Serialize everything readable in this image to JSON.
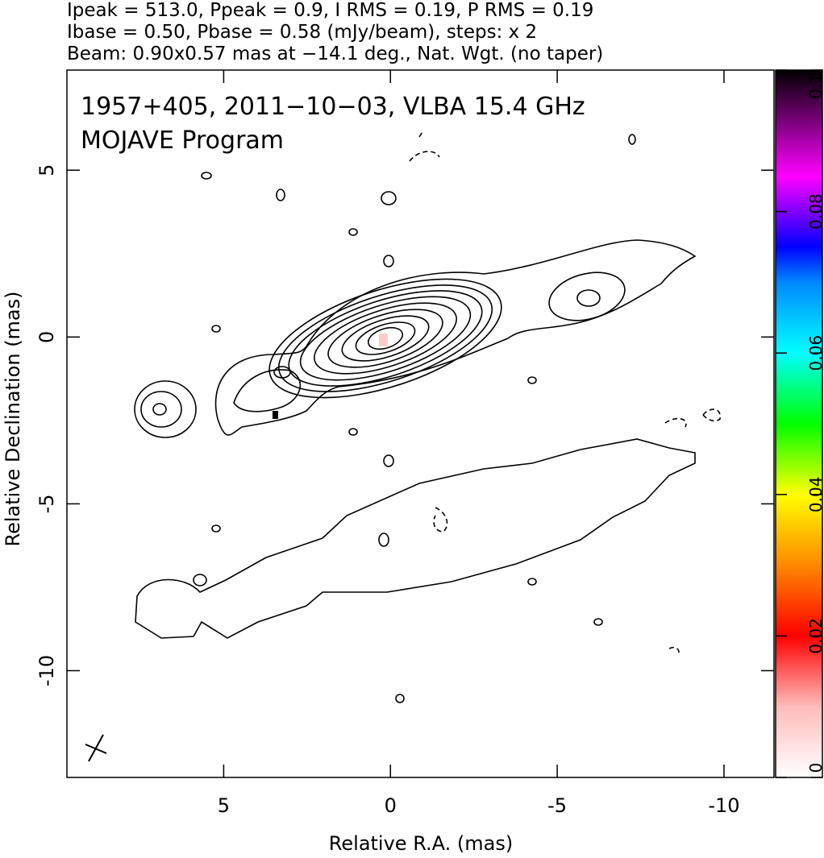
{
  "chart_data": {
    "type": "contour",
    "title_lines": [
      "Ipeak = 513.0, Ppeak = 0.9, I RMS = 0.19, P RMS = 0.19",
      "Ibase = 0.50, Pbase = 0.58 (mJy/beam), steps: x 2",
      "Beam: 0.90x0.57 mas at −14.1 deg., Nat. Wgt. (no taper)"
    ],
    "annotations": [
      "1957+405, 2011−10−03, VLBA 15.4 GHz",
      "MOJAVE Program"
    ],
    "xlabel": "Relative R.A. (mas)",
    "ylabel": "Relative Declination (mas)",
    "xlim": [
      9.7,
      -11.5
    ],
    "xticks": [
      5,
      0,
      -5,
      -10
    ],
    "ylim": [
      -13.2,
      8
    ],
    "yticks": [
      5,
      0,
      -5,
      -10
    ],
    "colorbar_lim": [
      0,
      0.1
    ],
    "colorbar_ticks": [
      0,
      0.02,
      0.04,
      0.06,
      0.08,
      0.1
    ]
  }
}
